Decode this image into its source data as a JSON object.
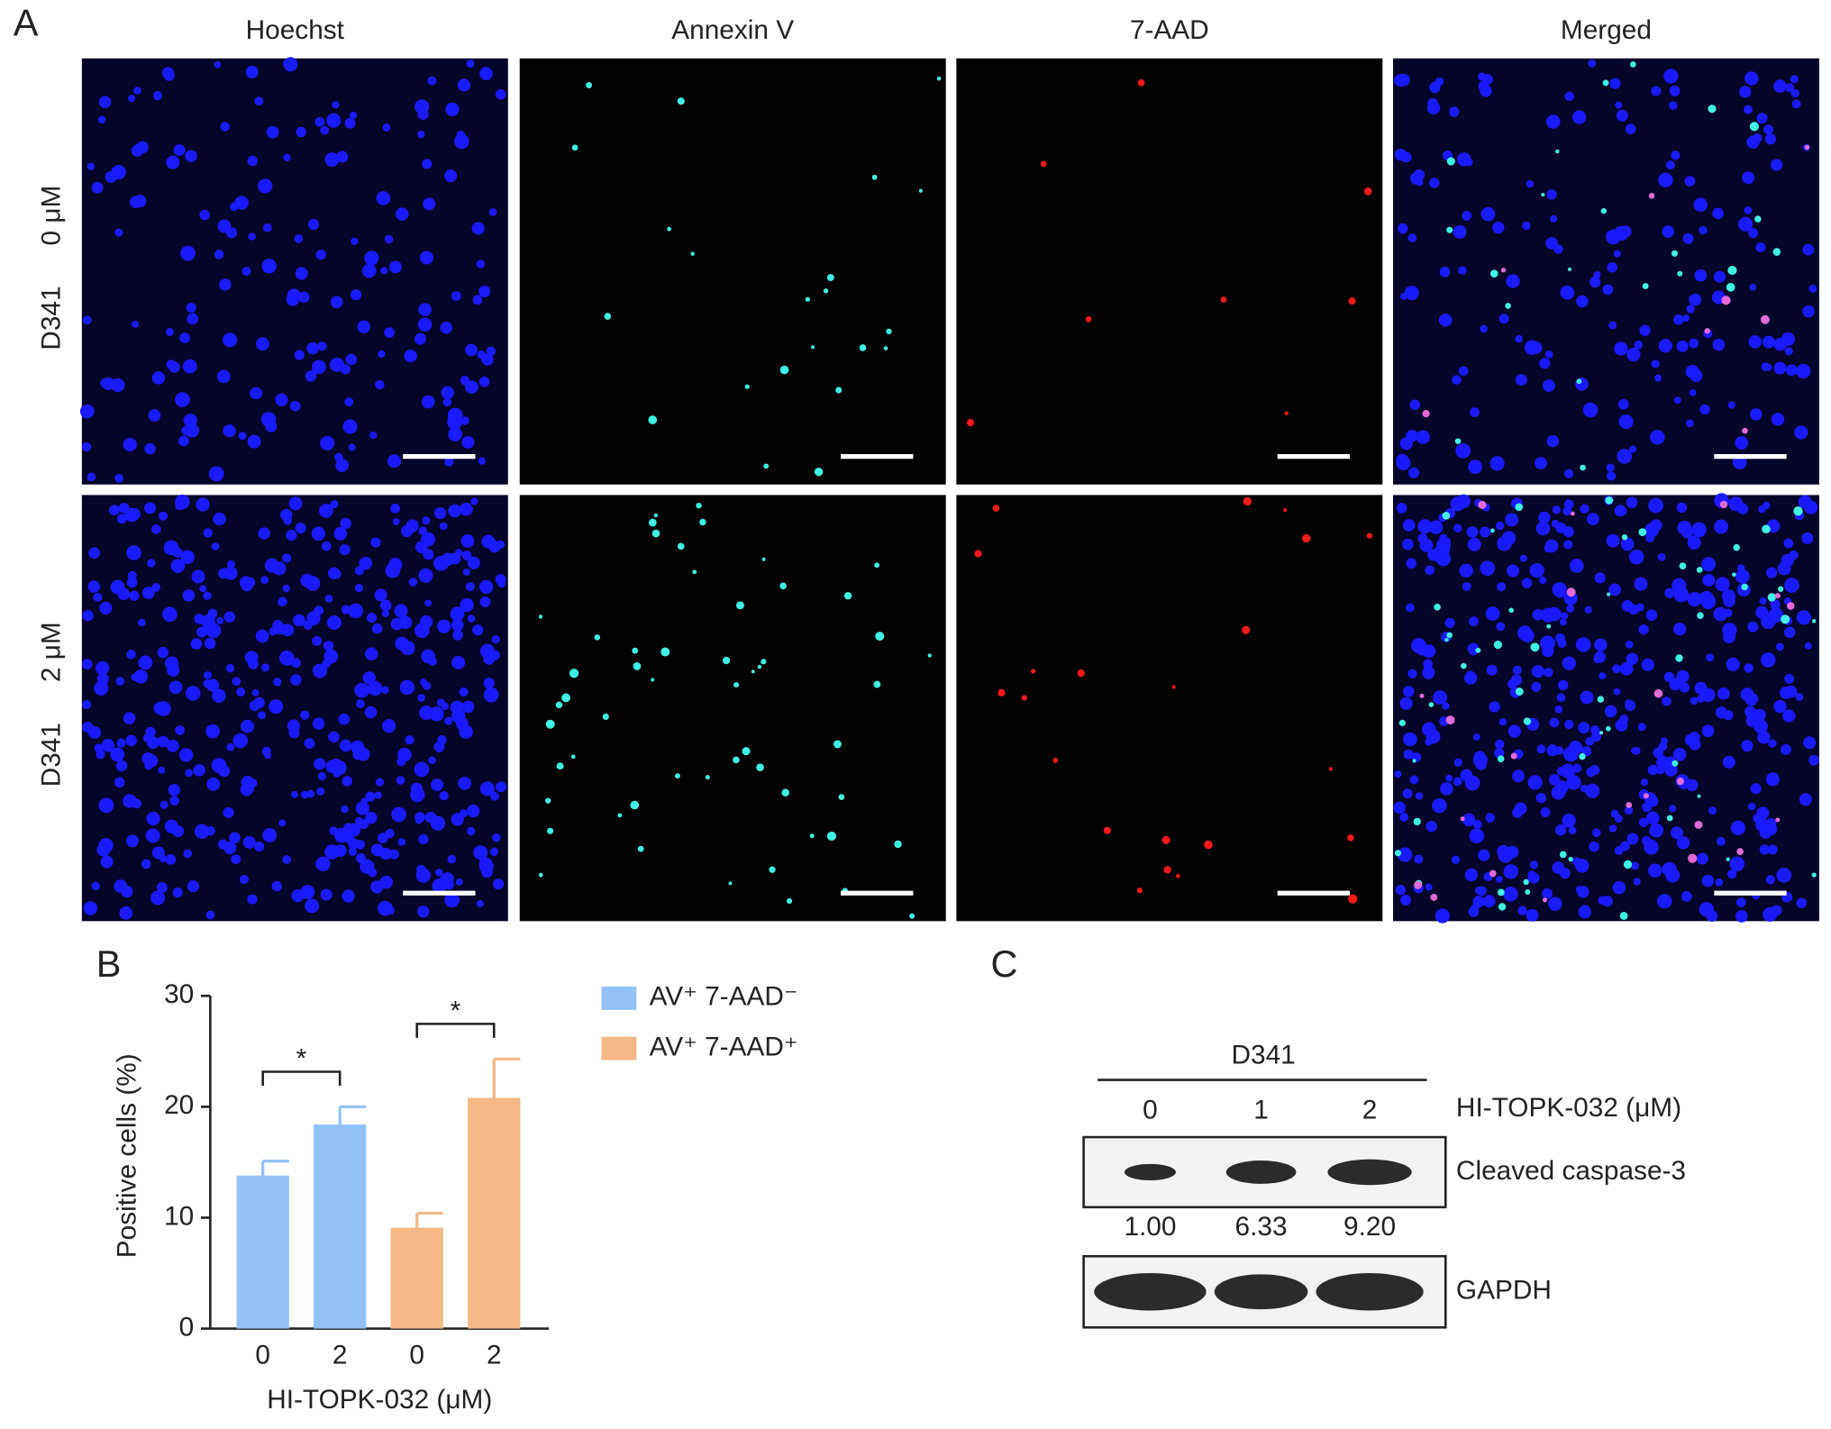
{
  "panel_labels": [
    "A",
    "B",
    "C"
  ],
  "microscopy": {
    "columns": [
      "Hoechst",
      "Annexin V",
      "7-AAD",
      "Merged"
    ],
    "rows": [
      {
        "dose": "0 μM",
        "cell_line": "D341"
      },
      {
        "dose": "2 μM",
        "cell_line": "D341"
      }
    ]
  },
  "chart_data": {
    "type": "bar",
    "categories": [
      "0",
      "2",
      "0",
      "2"
    ],
    "x_label": "HI-TOPK-032 (μM)",
    "y_label": "Positive cells (%)",
    "ylim": [
      0,
      30
    ],
    "yticks": [
      0,
      10,
      20,
      30
    ],
    "series": [
      {
        "name": "AV⁺ 7-AAD⁻",
        "color": "#92c2f5",
        "values": [
          13.8,
          18.4,
          null,
          null
        ],
        "errors": [
          1.3,
          1.6,
          null,
          null
        ]
      },
      {
        "name": "AV⁺ 7-AAD⁺",
        "color": "#f4b887",
        "values": [
          null,
          null,
          9.1,
          20.8
        ],
        "errors": [
          null,
          null,
          1.3,
          3.5
        ]
      }
    ],
    "annotations": [
      "*",
      "*"
    ]
  },
  "blot": {
    "cell_line": "D341",
    "treatment": "HI-TOPK-032 (μM)",
    "lanes": [
      "0",
      "1",
      "2"
    ],
    "bands": [
      {
        "name": "Cleaved caspase-3",
        "quantification": [
          "1.00",
          "6.33",
          "9.20"
        ]
      },
      {
        "name": "GAPDH"
      }
    ]
  }
}
